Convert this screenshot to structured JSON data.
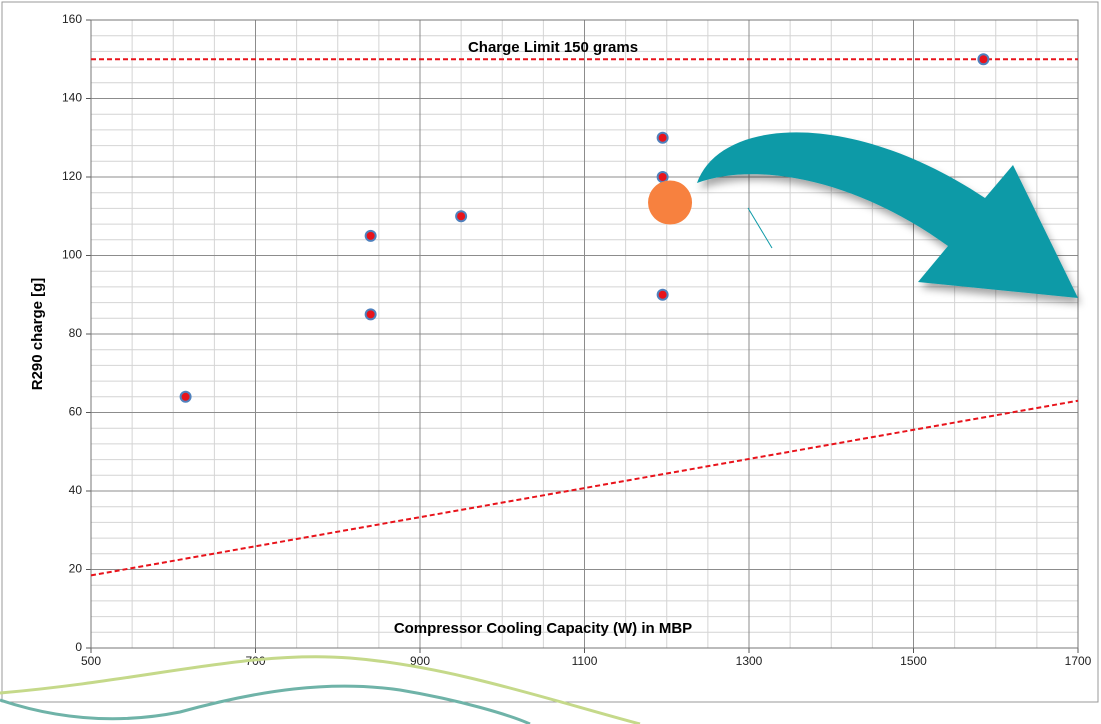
{
  "chart_data": {
    "type": "scatter",
    "annotation": "Charge Limit  150 grams",
    "x_label": "Compressor Cooling Capacity (W) in MBP",
    "y_label": "R290 charge [g]",
    "xlim": [
      500,
      1700
    ],
    "ylim": [
      0,
      160
    ],
    "xticks": [
      500,
      700,
      900,
      1100,
      1300,
      1500,
      1700
    ],
    "yticks": [
      0,
      20,
      40,
      60,
      80,
      100,
      120,
      140,
      160
    ],
    "grid": true,
    "minor_grid": {
      "x": 50,
      "y": 4
    },
    "series": [
      {
        "type": "line",
        "style": "dashed",
        "color": "#e8131b",
        "x": [
          500,
          1700
        ],
        "values": [
          150,
          150
        ]
      },
      {
        "type": "line",
        "style": "dashed",
        "color": "#e8131b",
        "x": [
          500,
          1700
        ],
        "values": [
          18.5,
          63
        ]
      },
      {
        "type": "scatter",
        "marker": "small",
        "color": "#e8131b",
        "edgecolor": "#4f81bd",
        "x": [
          615,
          840,
          840,
          950,
          1195,
          1195,
          1195,
          1585
        ],
        "values": [
          64,
          105,
          85,
          110,
          130,
          120,
          90,
          150
        ]
      },
      {
        "type": "scatter",
        "marker": "large",
        "color": "#f7813f",
        "edgecolor": "#f7813f",
        "x": [
          1204
        ],
        "values": [
          113.5
        ]
      }
    ]
  }
}
